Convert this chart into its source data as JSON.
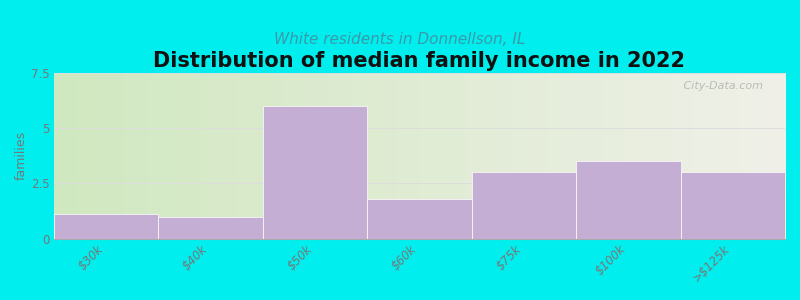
{
  "title": "Distribution of median family income in 2022",
  "subtitle": "White residents in Donnellson, IL",
  "categories": [
    "$30k",
    "$40k",
    "$50k",
    "$60k",
    "$75k",
    "$100k",
    ">$125k"
  ],
  "values": [
    1.1,
    1.0,
    6.0,
    1.8,
    3.0,
    3.5,
    3.0
  ],
  "bar_color": "#c5aed4",
  "bar_edge_color": "#ffffff",
  "background_color": "#00eeee",
  "plot_bg_left": "#d0e8c0",
  "plot_bg_right": "#f0f0e8",
  "ylabel": "families",
  "ylim": [
    0,
    7.5
  ],
  "yticks": [
    0,
    2.5,
    5,
    7.5
  ],
  "title_fontsize": 15,
  "subtitle_fontsize": 11,
  "subtitle_color": "#3a9aaa",
  "watermark": " City-Data.com",
  "title_fontweight": "bold",
  "tick_color": "#777777",
  "grid_color": "#dddddd"
}
